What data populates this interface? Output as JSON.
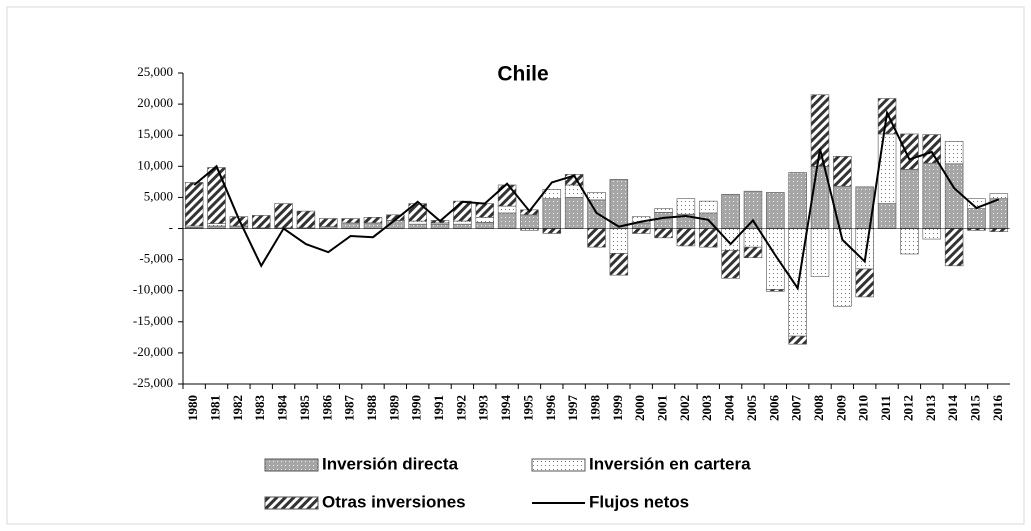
{
  "chart_data": {
    "type": "bar",
    "title": "Chile",
    "categories": [
      "1980",
      "1981",
      "1982",
      "1983",
      "1984",
      "1985",
      "1986",
      "1987",
      "1988",
      "1989",
      "1990",
      "1991",
      "1992",
      "1993",
      "1994",
      "1995",
      "1996",
      "1997",
      "1998",
      "1999",
      "2000",
      "2001",
      "2002",
      "2003",
      "2004",
      "2005",
      "2006",
      "2007",
      "2008",
      "2009",
      "2010",
      "2011",
      "2012",
      "2013",
      "2014",
      "2015",
      "2016"
    ],
    "series": [
      {
        "name": "Inversión directa",
        "type": "bar",
        "color": "#a6a6a6",
        "values": [
          200,
          400,
          400,
          100,
          100,
          100,
          300,
          900,
          900,
          1300,
          700,
          700,
          700,
          1000,
          2500,
          2200,
          4800,
          5000,
          4600,
          7900,
          900,
          2600,
          2300,
          2500,
          5500,
          6000,
          5800,
          9000,
          10000,
          6800,
          6700,
          4000,
          9500,
          10500,
          10400,
          3200,
          4800
        ]
      },
      {
        "name": "Inversión en cartera",
        "type": "bar",
        "color": "#ffffff",
        "values": [
          200,
          400,
          0,
          0,
          0,
          0,
          0,
          0,
          0,
          0,
          500,
          200,
          500,
          800,
          1100,
          -300,
          1500,
          2000,
          1200,
          -4000,
          1000,
          600,
          2500,
          1900,
          -3500,
          -3000,
          -9800,
          -17300,
          -7700,
          -12500,
          -6500,
          11200,
          -4100,
          -1700,
          3600,
          1600,
          800
        ]
      },
      {
        "name": "Otras inversiones",
        "type": "bar",
        "color": "#ffffff",
        "values": [
          7000,
          9000,
          1500,
          2000,
          3900,
          2700,
          1300,
          700,
          900,
          900,
          2800,
          400,
          3200,
          2200,
          3400,
          800,
          -800,
          1700,
          -3000,
          -3500,
          -800,
          -1500,
          -2800,
          -3000,
          -4500,
          -1700,
          -300,
          -1300,
          11500,
          4800,
          -4500,
          5700,
          5700,
          4600,
          -6000,
          -300,
          -500
        ]
      },
      {
        "name": "Flujos netos",
        "type": "line",
        "color": "#000000",
        "values": [
          7000,
          10000,
          1500,
          -6000,
          0,
          -2500,
          -3800,
          -1200,
          -1400,
          1400,
          4300,
          1200,
          4300,
          4000,
          7200,
          2800,
          7400,
          8500,
          2500,
          300,
          1100,
          1700,
          2000,
          1400,
          -2500,
          1300,
          -4300,
          -9600,
          12800,
          -1800,
          -5300,
          18600,
          11100,
          12300,
          6500,
          3300,
          4700
        ]
      }
    ],
    "ylim": [
      -25000,
      25000
    ],
    "yticks": [
      {
        "value": -25000,
        "label": "-25,000"
      },
      {
        "value": -20000,
        "label": "-20,000"
      },
      {
        "value": -15000,
        "label": "-15,000"
      },
      {
        "value": -10000,
        "label": "-10,000"
      },
      {
        "value": -5000,
        "label": "-5,000"
      },
      {
        "value": 0,
        "label": "-"
      },
      {
        "value": 5000,
        "label": "5,000"
      },
      {
        "value": 10000,
        "label": "10,000"
      },
      {
        "value": 15000,
        "label": "15,000"
      },
      {
        "value": 20000,
        "label": "20,000"
      },
      {
        "value": 25000,
        "label": "25,000"
      }
    ],
    "grid": false,
    "legend": "bottom"
  }
}
